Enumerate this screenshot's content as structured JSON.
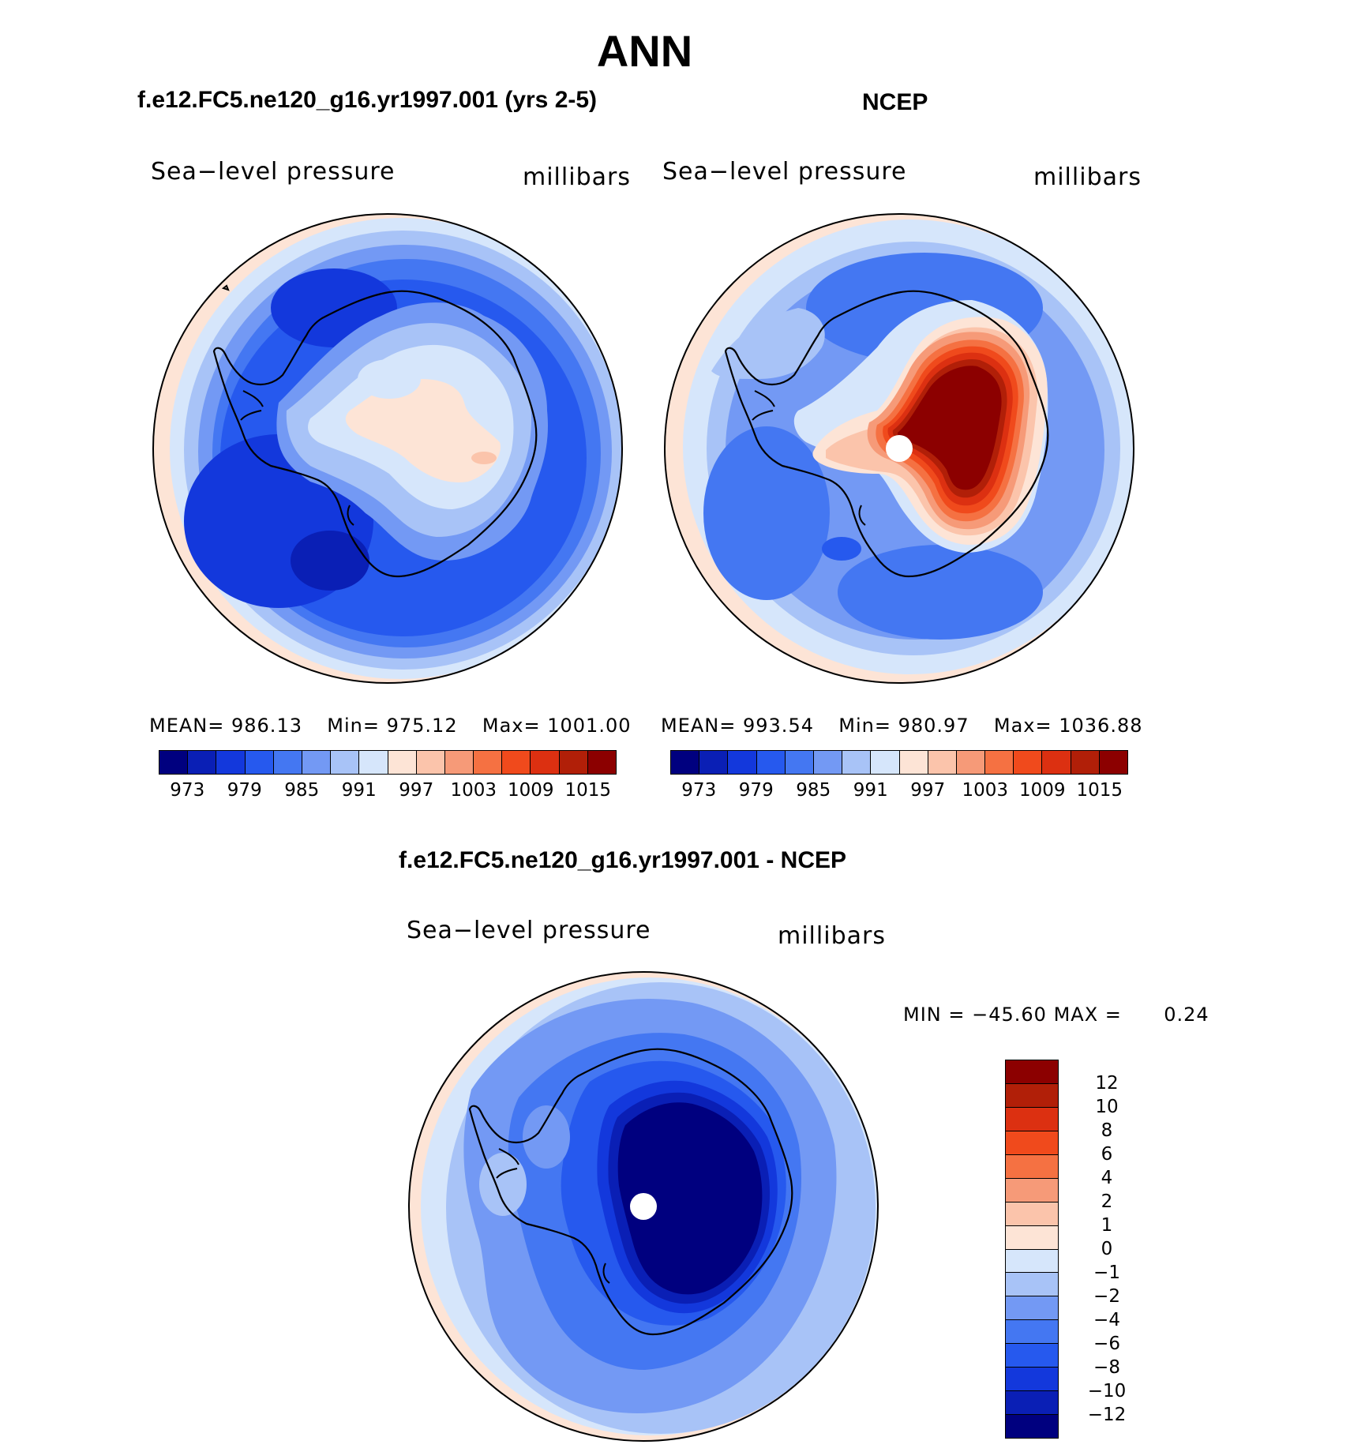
{
  "figure": {
    "title": "ANN"
  },
  "panels": {
    "model": {
      "title": "f.e12.FC5.ne120_g16.yr1997.001 (yrs 2-5)",
      "variable": "Sea−level pressure",
      "units": "millibars",
      "mean_label": "MEAN=",
      "mean": "986.13",
      "min_label": "Min=",
      "min": "975.12",
      "max_label": "Max=",
      "max": "1001.00"
    },
    "obs": {
      "title": "NCEP",
      "variable": "Sea−level pressure",
      "units": "millibars",
      "mean_label": "MEAN=",
      "mean": "993.54",
      "min_label": "Min=",
      "min": "980.97",
      "max_label": "Max=",
      "max": "1036.88"
    },
    "diff": {
      "title": "f.e12.FC5.ne120_g16.yr1997.001 - NCEP",
      "variable": "Sea−level pressure",
      "units": "millibars",
      "min_label": "MIN =",
      "min": "−45.60",
      "max_label": "MAX =",
      "max": "0.24"
    }
  },
  "colorbars": {
    "abs_colors": [
      "#00007f",
      "#0a1fb5",
      "#1338dc",
      "#2659ee",
      "#4477f2",
      "#7399f4",
      "#a8c3f7",
      "#d6e6fb",
      "#fde4d6",
      "#fbc4ab",
      "#f69a78",
      "#f57142",
      "#f04a1c",
      "#dc3011",
      "#b11f08",
      "#8c0000"
    ],
    "abs_ticks": [
      "973",
      "979",
      "985",
      "991",
      "997",
      "1003",
      "1009",
      "1015"
    ],
    "diff_colors": [
      "#8c0000",
      "#b11f08",
      "#dc3011",
      "#f04a1c",
      "#f57142",
      "#f69a78",
      "#fbc4ab",
      "#fde4d6",
      "#d6e6fb",
      "#a8c3f7",
      "#7399f4",
      "#4477f2",
      "#2659ee",
      "#1338dc",
      "#0a1fb5",
      "#00007f"
    ],
    "diff_ticks": [
      "12",
      "10",
      "8",
      "6",
      "4",
      "2",
      "1",
      "0",
      "−1",
      "−2",
      "−4",
      "−6",
      "−8",
      "−10",
      "−12"
    ]
  }
}
